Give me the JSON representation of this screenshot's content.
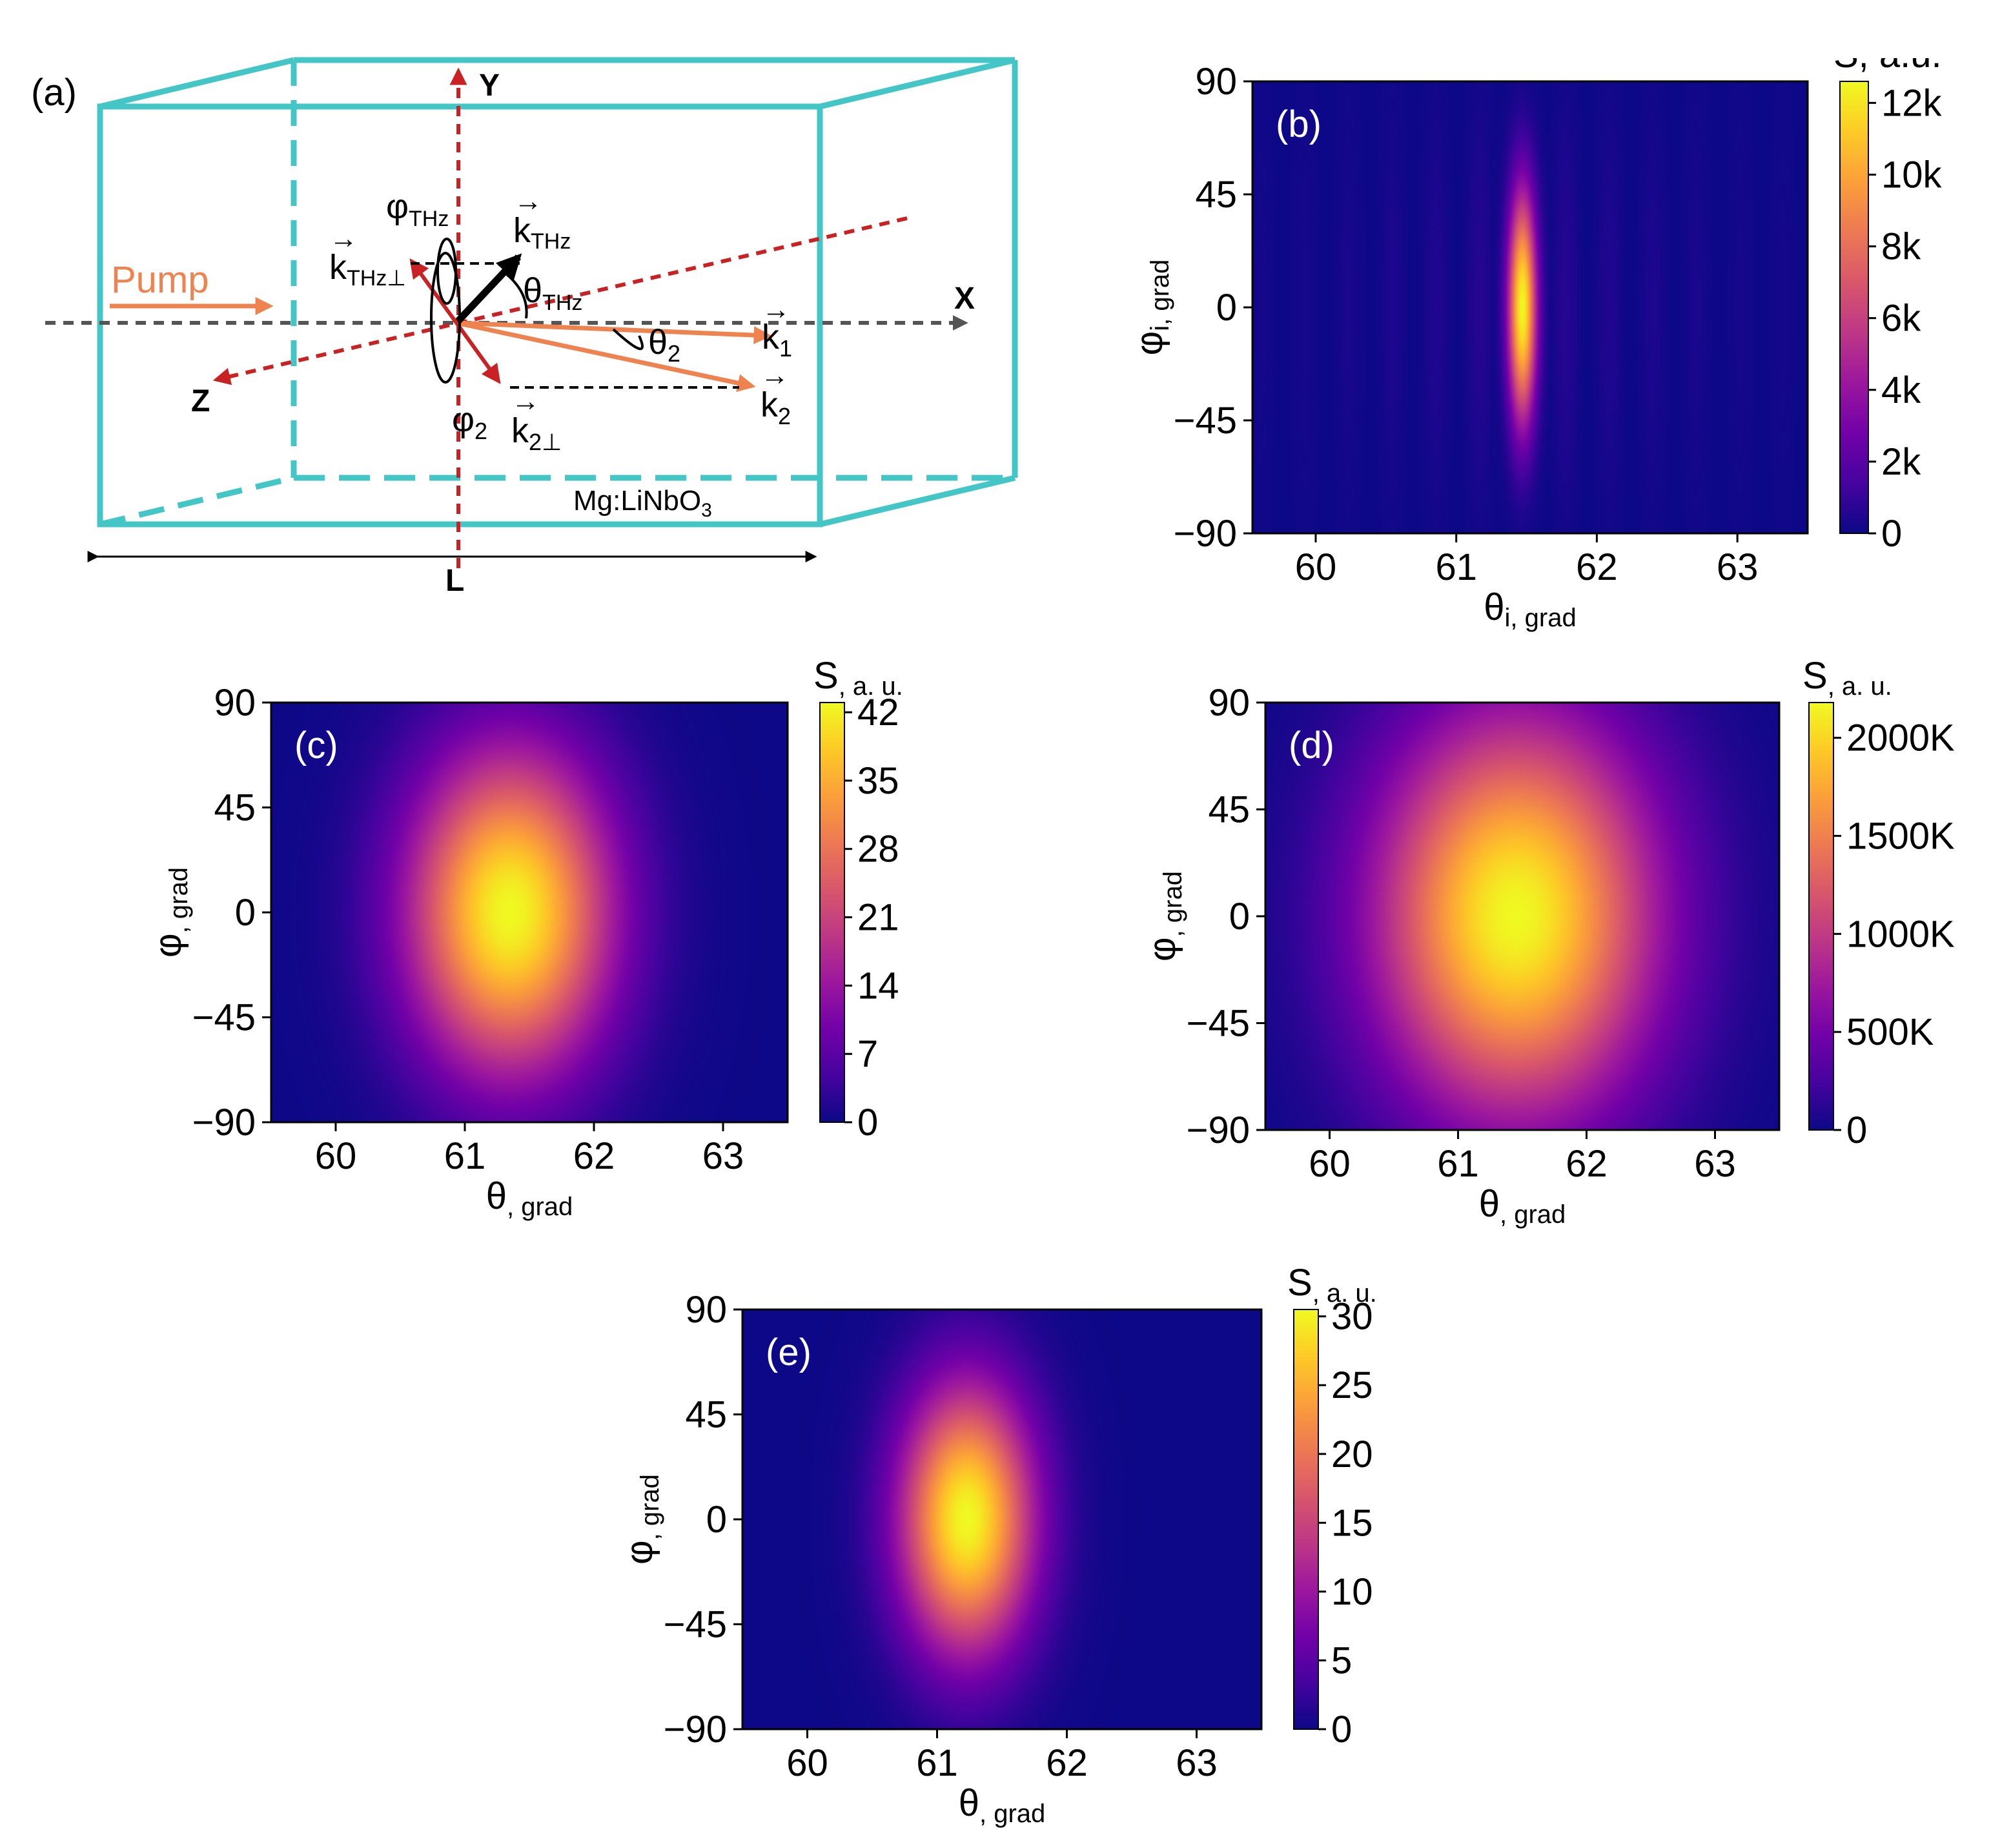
{
  "figure": {
    "colormap": "plasma",
    "colormap_stops": [
      "#0d0887",
      "#46039f",
      "#7201a8",
      "#9c179e",
      "#bd3786",
      "#d8576b",
      "#ed7953",
      "#fb9f3a",
      "#fdca26",
      "#f0f921"
    ],
    "colors": {
      "crystal": "#44c6c6",
      "pump": "#ee8350",
      "axis_red": "#c82224",
      "axis_gray": "#555555",
      "text": "#000000"
    }
  },
  "diagram": {
    "panel_label": "(a)",
    "pump": "Pump",
    "axis_x": "X",
    "axis_y": "Y",
    "axis_z": "Z",
    "length": "L",
    "crystal": "Mg:LiNbO",
    "crystal_sub": "3",
    "phi_thz": "φ",
    "phi_thz_sub": "THz",
    "theta_thz": "θ",
    "theta_thz_sub": "THz",
    "k_thz": "k",
    "k_thz_sub": "THz",
    "k_thz_perp": "k",
    "k_thz_perp_sub": "THz⊥",
    "theta2": "θ",
    "theta2_sub": "2",
    "phi2": "φ",
    "phi2_sub": "2",
    "k1": "k",
    "k1_sub": "1",
    "k2": "k",
    "k2_sub": "2",
    "k2_perp": "k",
    "k2_perp_sub": "2⊥",
    "vector_arrow": "→"
  },
  "chart_data": [
    {
      "id": "b",
      "type": "heatmap",
      "panel_label": "(b)",
      "x": {
        "label": "θ",
        "label_sub": "i, grad",
        "range": [
          59.55,
          63.5
        ],
        "ticks": [
          60,
          61,
          62,
          63
        ],
        "tick_labels": [
          "60",
          "61",
          "62",
          "63"
        ]
      },
      "y": {
        "label": "φ",
        "label_sub": "i, grad",
        "range": [
          -90,
          90
        ],
        "ticks": [
          90,
          45,
          0,
          -45,
          -90
        ],
        "tick_labels": [
          "90",
          "45",
          "0",
          "−45",
          "−90"
        ]
      },
      "colorbar": {
        "title": "S, a.u.",
        "title_sub": "",
        "max": 12600,
        "ticks": [
          0,
          2000,
          4000,
          6000,
          8000,
          10000,
          12000
        ],
        "tick_labels": [
          "0",
          "2k",
          "4k",
          "6k",
          "8k",
          "10k",
          "12k"
        ]
      },
      "peak": {
        "theta": 61.47,
        "phi": 0,
        "value": 12600,
        "sigma_theta": 0.07,
        "sigma_phi": 32,
        "sidelobe_spacing": 0.31,
        "sidelobe_level": 0.06
      }
    },
    {
      "id": "c",
      "type": "heatmap",
      "panel_label": "(c)",
      "x": {
        "label": "θ",
        "label_sub": ", grad",
        "range": [
          59.5,
          63.5
        ],
        "ticks": [
          60,
          61,
          62,
          63
        ],
        "tick_labels": [
          "60",
          "61",
          "62",
          "63"
        ]
      },
      "y": {
        "label": "φ",
        "label_sub": ", grad",
        "range": [
          -90,
          90
        ],
        "ticks": [
          90,
          45,
          0,
          -45,
          -90
        ],
        "tick_labels": [
          "90",
          "45",
          "0",
          "−45",
          "−90"
        ]
      },
      "colorbar": {
        "title": "S",
        "title_sub": ", a. u.",
        "max": 43,
        "ticks": [
          0,
          7,
          14,
          21,
          28,
          35,
          42
        ],
        "tick_labels": [
          "0",
          "7",
          "14",
          "21",
          "28",
          "35",
          "42"
        ]
      },
      "peak": {
        "theta": 61.35,
        "phi": 0,
        "value": 43,
        "sigma_theta": 0.55,
        "sigma_phi": 48,
        "sidelobe_spacing": 0,
        "sidelobe_level": 0
      }
    },
    {
      "id": "d",
      "type": "heatmap",
      "panel_label": "(d)",
      "x": {
        "label": "θ",
        "label_sub": ", grad",
        "range": [
          59.5,
          63.5
        ],
        "ticks": [
          60,
          61,
          62,
          63
        ],
        "tick_labels": [
          "60",
          "61",
          "62",
          "63"
        ]
      },
      "y": {
        "label": "φ",
        "label_sub": ", grad",
        "range": [
          -90,
          90
        ],
        "ticks": [
          90,
          45,
          0,
          -45,
          -90
        ],
        "tick_labels": [
          "90",
          "45",
          "0",
          "−45",
          "−90"
        ]
      },
      "colorbar": {
        "title": "S",
        "title_sub": ", a. u.",
        "max": 2180000,
        "ticks": [
          0,
          500000,
          1000000,
          1500000,
          2000000
        ],
        "tick_labels": [
          "0",
          "500K",
          "1000K",
          "1500K",
          "2000K"
        ]
      },
      "peak": {
        "theta": 61.45,
        "phi": 0,
        "value": 2180000,
        "sigma_theta": 0.75,
        "sigma_phi": 58,
        "sidelobe_spacing": 0,
        "sidelobe_level": 0
      }
    },
    {
      "id": "e",
      "type": "heatmap",
      "panel_label": "(e)",
      "x": {
        "label": "θ",
        "label_sub": ", grad",
        "range": [
          59.5,
          63.5
        ],
        "ticks": [
          60,
          61,
          62,
          63
        ],
        "tick_labels": [
          "60",
          "61",
          "62",
          "63"
        ]
      },
      "y": {
        "label": "φ",
        "label_sub": ", grad",
        "range": [
          -90,
          90
        ],
        "ticks": [
          90,
          45,
          0,
          -45,
          -90
        ],
        "tick_labels": [
          "90",
          "45",
          "0",
          "−45",
          "−90"
        ]
      },
      "colorbar": {
        "title": "S",
        "title_sub": ", a. u.",
        "max": 30.5,
        "ticks": [
          0,
          5,
          10,
          15,
          20,
          25,
          30
        ],
        "tick_labels": [
          "0",
          "5",
          "10",
          "15",
          "20",
          "25",
          "30"
        ]
      },
      "peak": {
        "theta": 61.23,
        "phi": 0,
        "value": 30.5,
        "sigma_theta": 0.36,
        "sigma_phi": 40,
        "sidelobe_spacing": 0,
        "sidelobe_level": 0
      }
    }
  ]
}
